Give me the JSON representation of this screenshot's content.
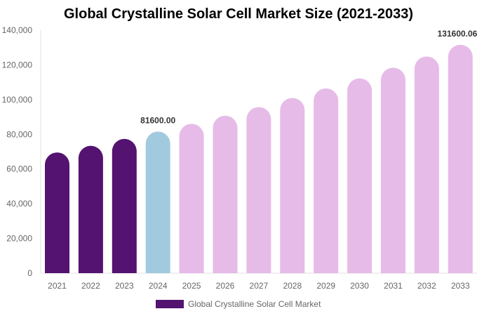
{
  "chart_data": {
    "type": "bar",
    "title": "Global Crystalline Solar Cell Market Size (2021-2033)",
    "categories": [
      "2021",
      "2022",
      "2023",
      "2024",
      "2025",
      "2026",
      "2027",
      "2028",
      "2029",
      "2030",
      "2031",
      "2032",
      "2033"
    ],
    "series": [
      {
        "name": "Global Crystalline Solar Cell Market",
        "values": [
          69570,
          73370,
          77375,
          81600,
          86055,
          90755,
          95710,
          100935,
          106445,
          112255,
          118385,
          124850,
          131600
        ]
      }
    ],
    "data_labels": [
      {
        "category": "2024",
        "text": "81600.00"
      },
      {
        "category": "2033",
        "text": "131600.06"
      }
    ],
    "ylim": [
      0,
      140000
    ],
    "yticks": [
      "0",
      "20,000",
      "40,000",
      "60,000",
      "80,000",
      "100,000",
      "120,000",
      "140,000"
    ],
    "xlabel": "",
    "ylabel": "",
    "grid": false,
    "legend": "bottom",
    "colors": {
      "historical": "#541370",
      "current": "#a2cadf",
      "forecast": "#e6bbe8"
    }
  }
}
